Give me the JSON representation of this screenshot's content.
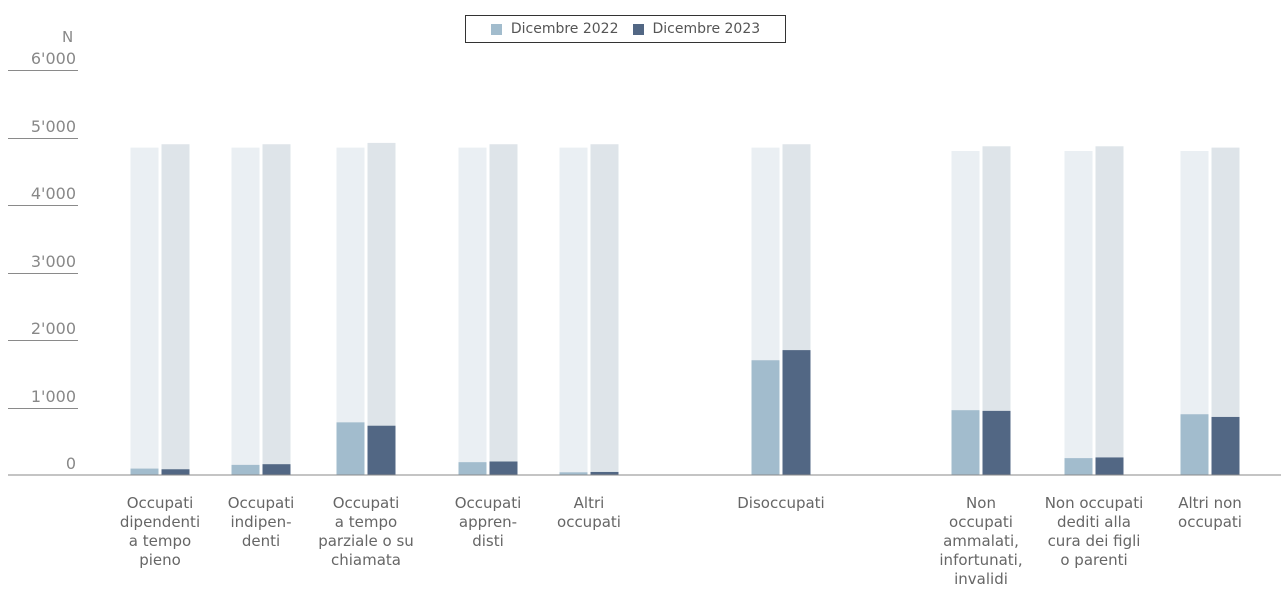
{
  "legend": {
    "series1": "Dicembre 2022",
    "series2": "Dicembre 2023"
  },
  "colors": {
    "series1": "#a2bccd",
    "series2": "#526784",
    "bg1": "#eaeff3",
    "bg2": "#dee4e9",
    "axis": "#8a8a8a",
    "text": "#666666"
  },
  "chart_data": {
    "type": "bar",
    "ylabel": "N",
    "ylim": [
      0,
      6000
    ],
    "yticks": [
      "0",
      "1'000",
      "2'000",
      "3'000",
      "4'000",
      "5'000",
      "6'000"
    ],
    "categories": [
      "Occupati\ndipendenti\na tempo\npieno",
      "Occupati\nindipen-\ndenti",
      "Occupati\na tempo\nparziale o su\nchiamata",
      "Occupati\nappren-\ndisti",
      "Altri\noccupati",
      "Disoccupati",
      "Non\noccupati\nammalati,\ninfortunati,\ninvalidi",
      "Non occupati\ndediti alla\ncura dei figli\no parenti",
      "Altri non\noccupati"
    ],
    "series": [
      {
        "name": "Dicembre 2022",
        "values": [
          95,
          150,
          780,
          190,
          40,
          1700,
          960,
          250,
          900
        ]
      },
      {
        "name": "Dicembre 2023",
        "values": [
          85,
          160,
          730,
          200,
          45,
          1850,
          950,
          260,
          860
        ]
      }
    ],
    "totals": {
      "Dicembre 2022": [
        4850,
        4850,
        4850,
        4850,
        4850,
        4850,
        4800,
        4800,
        4800
      ],
      "Dicembre 2023": [
        4900,
        4900,
        4920,
        4900,
        4900,
        4900,
        4870,
        4870,
        4850
      ]
    }
  }
}
